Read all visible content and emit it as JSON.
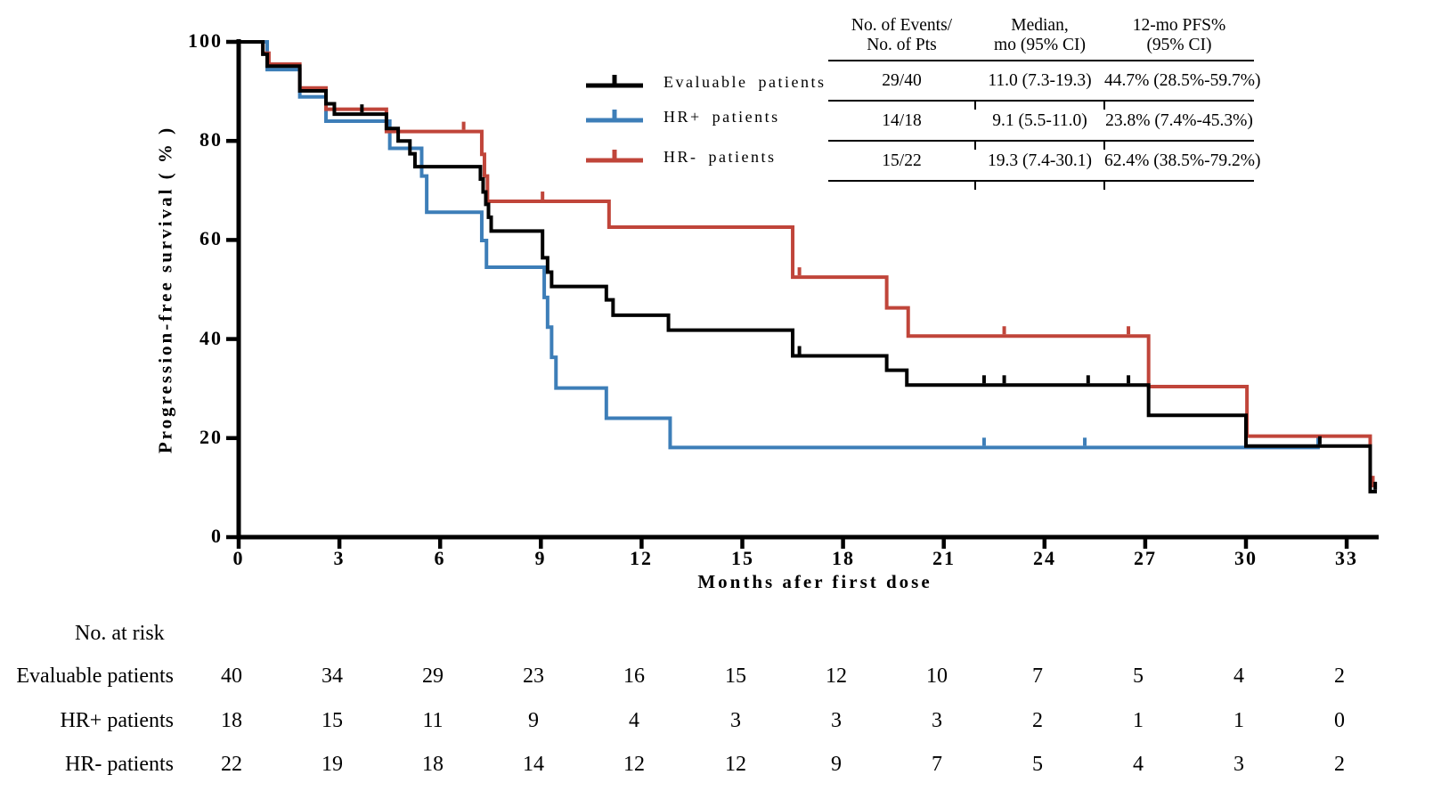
{
  "legend": {
    "items": [
      {
        "label": "Evaluable patients",
        "color": "#000000"
      },
      {
        "label": "HR+ patients",
        "color": "#3d7eb8"
      },
      {
        "label": "HR- patients",
        "color": "#c0453a"
      }
    ]
  },
  "stats_table": {
    "headers": [
      {
        "line1": "No. of Events/",
        "line2": "No. of Pts"
      },
      {
        "line1": "Median,",
        "line2": "mo (95% CI)"
      },
      {
        "line1": "12-mo PFS%",
        "line2": "(95% CI)"
      }
    ],
    "rows": [
      [
        "29/40",
        "11.0 (7.3-19.3)",
        "44.7% (28.5%-59.7%)"
      ],
      [
        "14/18",
        "9.1 (5.5-11.0)",
        "23.8% (7.4%-45.3%)"
      ],
      [
        "15/22",
        "19.3 (7.4-30.1)",
        "62.4% (38.5%-79.2%)"
      ]
    ]
  },
  "chart_data": {
    "type": "line",
    "subtype": "kaplan-meier-step",
    "title": "",
    "xlabel": "Months afer first dose",
    "ylabel": "Progression-free survival ( % )",
    "xlim": [
      0,
      34.3
    ],
    "ylim": [
      0,
      100
    ],
    "x_ticks": [
      0,
      3,
      6,
      9,
      12,
      15,
      18,
      21,
      24,
      27,
      30,
      33
    ],
    "y_ticks": [
      0,
      20,
      40,
      60,
      80,
      100
    ],
    "grid": false,
    "legend_position": "upper-center-left",
    "series": [
      {
        "name": "HR+ patients",
        "color": "#3d7eb8",
        "n": 18,
        "steps": [
          [
            0,
            100
          ],
          [
            0.85,
            94.4
          ],
          [
            1.82,
            88.9
          ],
          [
            2.6,
            84.0
          ],
          [
            4.5,
            78.5
          ],
          [
            5.45,
            72.9
          ],
          [
            5.6,
            65.6
          ],
          [
            7.24,
            59.9
          ],
          [
            7.38,
            54.5
          ],
          [
            9.1,
            48.4
          ],
          [
            9.2,
            42.4
          ],
          [
            9.32,
            36.3
          ],
          [
            9.45,
            30.1
          ],
          [
            10.95,
            24.0
          ],
          [
            12.85,
            18.1
          ]
        ],
        "end": 32.2,
        "censors": [
          22.2,
          25.2,
          32.15
        ]
      },
      {
        "name": "HR- patients",
        "color": "#c0453a",
        "n": 22,
        "steps": [
          [
            0,
            100
          ],
          [
            0.72,
            97.7
          ],
          [
            0.9,
            95.5
          ],
          [
            1.82,
            90.7
          ],
          [
            2.6,
            86.4
          ],
          [
            4.4,
            81.9
          ],
          [
            7.24,
            77.3
          ],
          [
            7.32,
            72.9
          ],
          [
            7.41,
            67.8
          ],
          [
            11.03,
            62.6
          ],
          [
            16.5,
            52.5
          ],
          [
            19.3,
            46.3
          ],
          [
            19.94,
            40.6
          ],
          [
            27.1,
            30.4
          ],
          [
            30.03,
            20.4
          ],
          [
            33.7,
            10.4
          ]
        ],
        "end": 33.85,
        "censors": [
          6.7,
          9.05,
          16.7,
          22.8,
          26.5,
          33.78
        ]
      },
      {
        "name": "Evaluable patients",
        "color": "#000000",
        "n": 40,
        "steps": [
          [
            0,
            100
          ],
          [
            0.72,
            97.5
          ],
          [
            0.85,
            95.1
          ],
          [
            1.82,
            90.1
          ],
          [
            2.6,
            87.5
          ],
          [
            2.85,
            85.4
          ],
          [
            4.4,
            82.5
          ],
          [
            4.75,
            80.0
          ],
          [
            5.1,
            77.4
          ],
          [
            5.25,
            74.8
          ],
          [
            7.2,
            72.3
          ],
          [
            7.28,
            69.7
          ],
          [
            7.36,
            67.2
          ],
          [
            7.44,
            64.6
          ],
          [
            7.52,
            61.8
          ],
          [
            9.05,
            56.4
          ],
          [
            9.2,
            53.5
          ],
          [
            9.32,
            50.6
          ],
          [
            10.95,
            47.9
          ],
          [
            11.15,
            44.8
          ],
          [
            12.8,
            41.8
          ],
          [
            16.5,
            36.6
          ],
          [
            19.3,
            33.7
          ],
          [
            19.9,
            30.7
          ],
          [
            27.1,
            24.6
          ],
          [
            30.0,
            18.4
          ],
          [
            33.7,
            9.2
          ]
        ],
        "end": 33.9,
        "censors": [
          3.67,
          16.7,
          22.2,
          22.8,
          25.3,
          26.5,
          32.2,
          33.85
        ]
      }
    ]
  },
  "risk_table": {
    "title": "No. at risk",
    "rows": [
      {
        "label": "Evaluable patients",
        "values": [
          40,
          34,
          29,
          23,
          16,
          15,
          12,
          10,
          7,
          5,
          4,
          2
        ]
      },
      {
        "label": "HR+ patients",
        "values": [
          18,
          15,
          11,
          9,
          4,
          3,
          3,
          3,
          2,
          1,
          1,
          0
        ]
      },
      {
        "label": "HR- patients",
        "values": [
          22,
          19,
          18,
          14,
          12,
          12,
          9,
          7,
          5,
          4,
          3,
          2
        ]
      }
    ]
  }
}
